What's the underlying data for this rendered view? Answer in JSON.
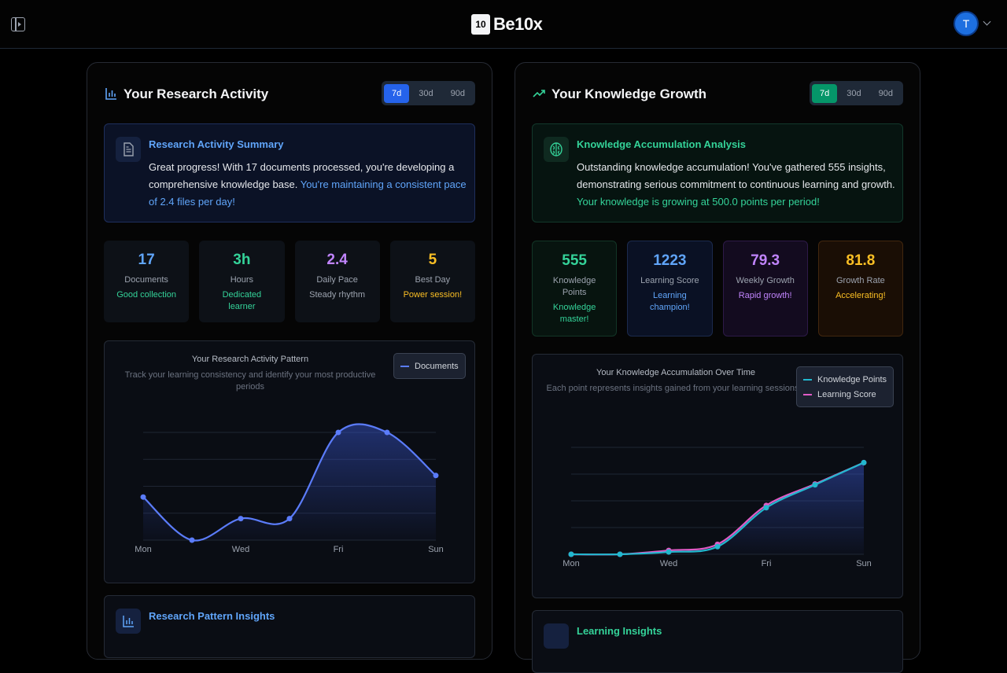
{
  "header": {
    "logo_badge": "10",
    "logo_text": "Be10x",
    "avatar_initial": "T"
  },
  "research": {
    "title": "Your Research Activity",
    "ranges": [
      "7d",
      "30d",
      "90d"
    ],
    "active_range": "7d",
    "summary": {
      "title": "Research Activity Summary",
      "text": "Great progress! With 17 documents processed, you're developing a comprehensive knowledge base. ",
      "highlight": "You're maintaining a consistent pace of 2.4 files per day!"
    },
    "stats": [
      {
        "value": "17",
        "label": "Documents",
        "note": "Good collection",
        "color": "#60a5fa",
        "note_color": "#34d399"
      },
      {
        "value": "3h",
        "label": "Hours",
        "note": "Dedicated learner",
        "color": "#34d399",
        "note_color": "#34d399"
      },
      {
        "value": "2.4",
        "label": "Daily Pace",
        "note": "Steady rhythm",
        "color": "#c084fc",
        "note_color": "#9ca3af"
      },
      {
        "value": "5",
        "label": "Best Day",
        "note": "Power session!",
        "color": "#fbbf24",
        "note_color": "#fbbf24"
      }
    ],
    "chart": {
      "title": "Your Research Activity Pattern",
      "subtitle": "Track your learning consistency and identify your most productive periods"
    },
    "insights_title": "Research Pattern Insights"
  },
  "knowledge": {
    "title": "Your Knowledge Growth",
    "ranges": [
      "7d",
      "30d",
      "90d"
    ],
    "active_range": "7d",
    "summary": {
      "title": "Knowledge Accumulation Analysis",
      "text": "Outstanding knowledge accumulation! You've gathered 555 insights, demonstrating serious commitment to continuous learning and growth. ",
      "highlight": "Your knowledge is growing at 500.0 points per period!"
    },
    "stats": [
      {
        "value": "555",
        "label": "Knowledge Points",
        "note": "Knowledge master!",
        "color": "#34d399",
        "note_color": "#34d399",
        "cls": "s-green"
      },
      {
        "value": "1223",
        "label": "Learning Score",
        "note": "Learning champion!",
        "color": "#60a5fa",
        "note_color": "#60a5fa",
        "cls": "s-blue"
      },
      {
        "value": "79.3",
        "label": "Weekly Growth",
        "note": "Rapid growth!",
        "color": "#c084fc",
        "note_color": "#c084fc",
        "cls": "s-purple"
      },
      {
        "value": "81.8",
        "label": "Growth Rate",
        "note": "Accelerating!",
        "color": "#fbbf24",
        "note_color": "#fbbf24",
        "cls": "s-orange"
      }
    ],
    "chart": {
      "title": "Your Knowledge Accumulation Over Time",
      "subtitle": "Each point represents insights gained from your learning sessions"
    },
    "insights_title": "Learning Insights"
  },
  "chart_data": [
    {
      "type": "area",
      "title": "Your Research Activity Pattern",
      "x": [
        "Mon",
        "Tue",
        "Wed",
        "Thu",
        "Fri",
        "Sat",
        "Sun"
      ],
      "tick_labels": [
        "Mon",
        "Wed",
        "Fri",
        "Sun"
      ],
      "series": [
        {
          "name": "Documents",
          "values": [
            2,
            0,
            1,
            1,
            5,
            5,
            3
          ],
          "color": "#5b7cfa"
        }
      ],
      "ylim": [
        0,
        5
      ],
      "grid": true,
      "legend": "top-right"
    },
    {
      "type": "line",
      "title": "Your Knowledge Accumulation Over Time",
      "x": [
        "Mon",
        "Tue",
        "Wed",
        "Thu",
        "Fri",
        "Sat",
        "Sun"
      ],
      "tick_labels": [
        "Mon",
        "Wed",
        "Fri",
        "Sun"
      ],
      "series": [
        {
          "name": "Knowledge Points",
          "values": [
            0,
            0,
            3,
            10,
            61,
            91,
            120
          ],
          "color": "#22b8cf"
        },
        {
          "name": "Learning Score",
          "values": [
            0,
            0,
            5,
            13,
            64,
            92,
            120
          ],
          "color": "#e05cc6"
        }
      ],
      "ylim": [
        0,
        140
      ],
      "grid": true,
      "legend": "top-right"
    }
  ]
}
